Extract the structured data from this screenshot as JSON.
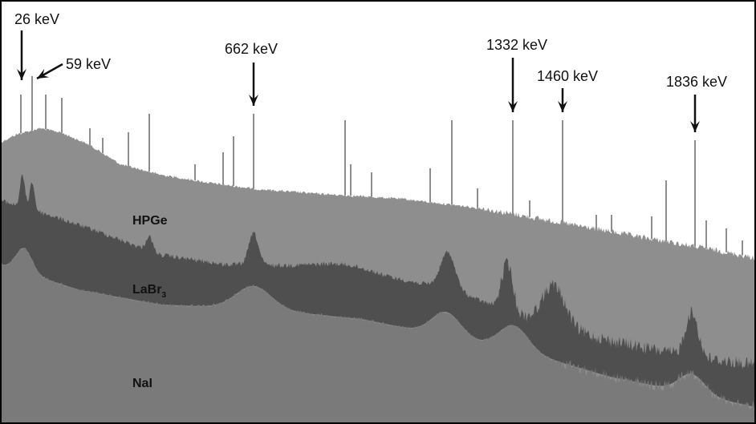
{
  "chart_data": {
    "type": "area",
    "title": "",
    "xlabel": "",
    "ylabel": "",
    "annotations": [
      {
        "text": "26 keV",
        "energy_kev": 26
      },
      {
        "text": "59 keV",
        "energy_kev": 59
      },
      {
        "text": "662 keV",
        "energy_kev": 662
      },
      {
        "text": "1332 keV",
        "energy_kev": 1332
      },
      {
        "text": "1460 keV",
        "energy_kev": 1460
      },
      {
        "text": "1836 keV",
        "energy_kev": 1836
      }
    ],
    "series": [
      {
        "name": "HPGe",
        "label_main": "HPGe",
        "label_sub": "",
        "color": "#8e8e8e"
      },
      {
        "name": "LaBr3",
        "label_main": "LaBr",
        "label_sub": "3",
        "color": "#4f4f4f"
      },
      {
        "name": "NaI",
        "label_main": "NaI",
        "label_sub": "",
        "color": "#7a7a7a"
      }
    ],
    "peaks_kev": [
      26,
      59,
      662,
      1332,
      1460,
      1836
    ],
    "grid": false,
    "legend": "inline labels"
  }
}
